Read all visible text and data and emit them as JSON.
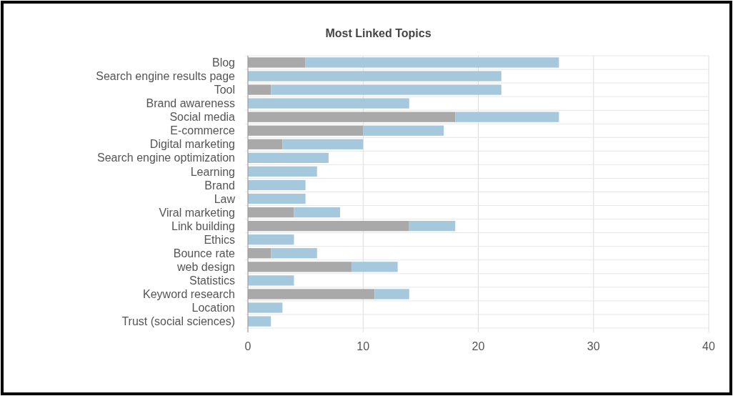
{
  "chart_data": {
    "type": "bar",
    "orientation": "horizontal",
    "stacked": true,
    "title": "Most Linked Topics",
    "categories": [
      "Blog",
      "Search engine results page",
      "Tool",
      "Brand awareness",
      "Social media",
      "E-commerce",
      "Digital marketing",
      "Search engine optimization",
      "Learning",
      "Brand",
      "Law",
      "Viral marketing",
      "Link building",
      "Ethics",
      "Bounce rate",
      "web design",
      "Statistics",
      "Keyword research",
      "Location",
      "Trust (social sciences)"
    ],
    "series": [
      {
        "color": "#a9a9a9",
        "values": [
          5,
          0,
          2,
          0,
          18,
          10,
          3,
          0,
          0,
          0,
          0,
          4,
          14,
          0,
          2,
          9,
          0,
          11,
          0,
          0
        ]
      },
      {
        "color": "#a6c8dc",
        "values": [
          22,
          22,
          20,
          14,
          9,
          7,
          7,
          7,
          6,
          5,
          5,
          4,
          4,
          4,
          4,
          4,
          4,
          3,
          3,
          2
        ]
      }
    ],
    "xlim": [
      0,
      40
    ],
    "xticks": [
      0,
      10,
      20,
      30,
      40
    ],
    "grid": true
  }
}
